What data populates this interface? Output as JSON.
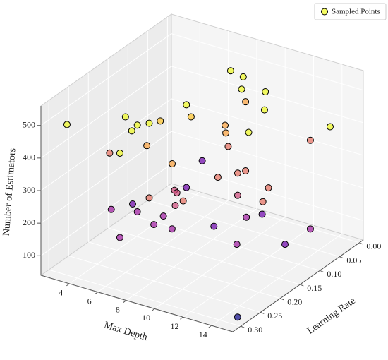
{
  "chart_data": {
    "type": "scatter3d",
    "xlabel": "Max Depth",
    "ylabel": "Learning Rate",
    "zlabel": "Number of Estimators",
    "xlim": [
      2,
      15.5
    ],
    "ylim": [
      -0.01,
      0.32
    ],
    "zlim": [
      40,
      560
    ],
    "xticks": [
      4,
      6,
      8,
      10,
      12,
      14
    ],
    "yticks": [
      {
        "value": 0,
        "label": "0.00"
      },
      0.05,
      {
        "value": 0.1,
        "label": "0.10"
      },
      0.15,
      {
        "value": 0.2,
        "label": "0.20"
      },
      0.25,
      {
        "value": 0.3,
        "label": "0.30"
      }
    ],
    "zticks": [
      100,
      200,
      300,
      400,
      500
    ],
    "grid": true,
    "legend": "upper right",
    "series": [
      {
        "name": "Sampled Points",
        "color": "#f0f921",
        "x": [
          3,
          6,
          4,
          6,
          6,
          7,
          5,
          6,
          7,
          5,
          7,
          7,
          9,
          10,
          10,
          10,
          13,
          8,
          10,
          13,
          11,
          14,
          14,
          4,
          5,
          10,
          10,
          10,
          13,
          14,
          10,
          5,
          5,
          6,
          7,
          7,
          6,
          4,
          5,
          6,
          7,
          8,
          9,
          7,
          10,
          12,
          12,
          14,
          13,
          15,
          15
        ],
        "y": [
          0.29,
          0.25,
          0.09,
          0.19,
          0.22,
          0.27,
          0.16,
          0.29,
          0.3,
          0.06,
          0.12,
          0.02,
          0.06,
          0.1,
          0.04,
          0.09,
          0.15,
          0.07,
          0.14,
          0.19,
          0.17,
          0.02,
          0.07,
          0.06,
          0.02,
          0.11,
          0.09,
          0.16,
          0.14,
          0.19,
          0.11,
          0.06,
          0.09,
          0.12,
          0.14,
          0.16,
          0.19,
          0.16,
          0.25,
          0.22,
          0.19,
          0.25,
          0.24,
          0.3,
          0.17,
          0.16,
          0.12,
          0.07,
          0.22,
          0.17,
          0.29
        ],
        "z": [
          490,
          518,
          343,
          447,
          467,
          505,
          340,
          441,
          462,
          380,
          420,
          476,
          517,
          526,
          467,
          479,
          544,
          364,
          426,
          509,
          423,
          394,
          395,
          186,
          174,
          277,
          267,
          307,
          296,
          309,
          209,
          126,
          143,
          174,
          179,
          182,
          218,
          148,
          221,
          201,
          175,
          213,
          204,
          203,
          165,
          210,
          185,
          123,
          191,
          174,
          53
        ],
        "colors": [
          "#f0f921",
          "#f0f921",
          "#fdc328",
          "#f0f921",
          "#f0f921",
          "#f0f921",
          "#fb9f3a",
          "#e66c5c",
          "#f0f921",
          "#f0f921",
          "#fdc328",
          "#f0f921",
          "#f0f921",
          "#f0f921",
          "#f0f921",
          "#fb9f3a",
          "#f0f921",
          "#fb9f3a",
          "#fb9f3a",
          "#f0f921",
          "#e66c5c",
          "#f0f921",
          "#e66c5c",
          "#fb9f3a",
          "#6a00a8",
          "#e66c5c",
          "#e66c5c",
          "#e66c5c",
          "#e66c5c",
          "#e66c5c",
          "#cc4778",
          "#6a00a8",
          "#cc4778",
          "#cc4778",
          "#e66c5c",
          "#cc4778",
          "#e66c5c",
          "#6a00a8",
          "#9c179e",
          "#9c179e",
          "#9c179e",
          "#9c179e",
          "#9c179e",
          "#9c179e",
          "#6a00a8",
          "#9c179e",
          "#6a00a8",
          "#9c179e",
          "#9c179e",
          "#6a00a8",
          "#0d0887"
        ]
      }
    ]
  }
}
